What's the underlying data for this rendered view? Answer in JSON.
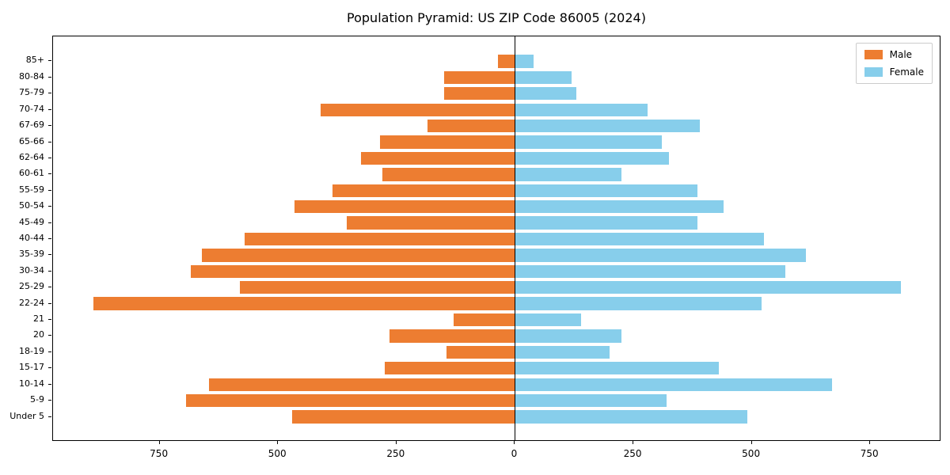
{
  "chart_data": {
    "type": "bar",
    "orientation": "horizontal",
    "title": "Population Pyramid: US ZIP Code 86005 (2024)",
    "xlabel": "",
    "ylabel": "",
    "xlim": [
      -975,
      900
    ],
    "grid": false,
    "legend_position": "top-right",
    "categories_top_to_bottom": [
      "85+",
      "80-84",
      "75-79",
      "70-74",
      "67-69",
      "65-66",
      "62-64",
      "60-61",
      "55-59",
      "50-54",
      "45-49",
      "40-44",
      "35-39",
      "30-34",
      "25-29",
      "22-24",
      "21",
      "20",
      "18-19",
      "15-17",
      "10-14",
      "5-9",
      "Under 5"
    ],
    "series": [
      {
        "name": "Male",
        "color": "#ed7d31",
        "side": "left",
        "values": [
          35,
          150,
          150,
          410,
          185,
          285,
          325,
          280,
          385,
          465,
          355,
          570,
          660,
          685,
          580,
          890,
          130,
          265,
          145,
          275,
          645,
          695,
          470
        ]
      },
      {
        "name": "Female",
        "color": "#87ceeb",
        "side": "right",
        "values": [
          40,
          120,
          130,
          280,
          390,
          310,
          325,
          225,
          385,
          440,
          385,
          525,
          615,
          570,
          815,
          520,
          140,
          225,
          200,
          430,
          670,
          320,
          490
        ]
      }
    ],
    "xtick_values": [
      -750,
      -500,
      -250,
      0,
      250,
      500,
      750
    ],
    "xtick_labels": [
      "750",
      "500",
      "250",
      "0",
      "250",
      "500",
      "750"
    ]
  }
}
